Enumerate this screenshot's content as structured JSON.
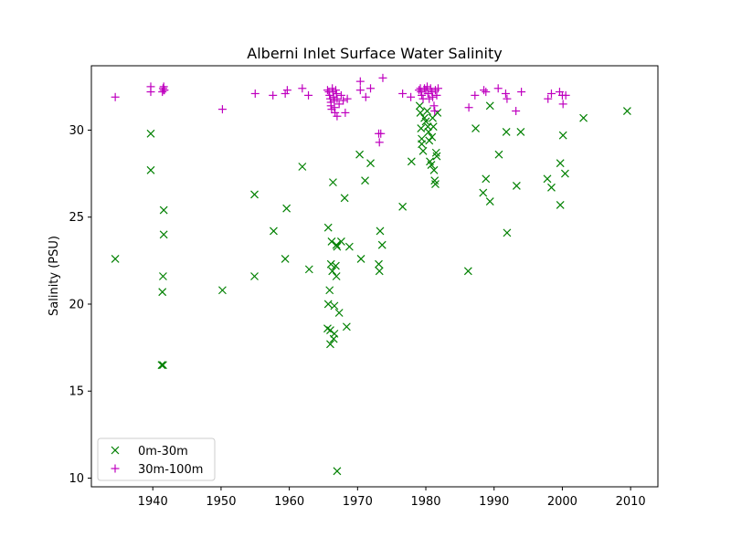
{
  "chart_data": {
    "type": "scatter",
    "title": "Alberni Inlet Surface Water Salinity",
    "xlabel": "",
    "ylabel": "Salinity (PSU)",
    "xlim": [
      1931,
      2014
    ],
    "ylim": [
      9.5,
      33.7
    ],
    "x_ticks": [
      1940,
      1950,
      1960,
      1970,
      1980,
      1990,
      2000,
      2010
    ],
    "y_ticks": [
      10,
      15,
      20,
      25,
      30
    ],
    "grid": false,
    "legend_position": "lower-left",
    "series": [
      {
        "name": "0m-30m",
        "marker": "x",
        "color": "#008000",
        "points": [
          [
            1934.5,
            22.6
          ],
          [
            1939.7,
            29.8
          ],
          [
            1939.7,
            27.7
          ],
          [
            1941.3,
            16.5
          ],
          [
            1941.5,
            16.5
          ],
          [
            1941.4,
            20.7
          ],
          [
            1941.5,
            21.6
          ],
          [
            1941.6,
            24.0
          ],
          [
            1941.6,
            25.4
          ],
          [
            1950.2,
            20.8
          ],
          [
            1954.9,
            26.3
          ],
          [
            1954.9,
            21.6
          ],
          [
            1957.7,
            24.2
          ],
          [
            1959.4,
            22.6
          ],
          [
            1959.6,
            25.5
          ],
          [
            1961.9,
            27.9
          ],
          [
            1962.9,
            22.0
          ],
          [
            1965.7,
            24.4
          ],
          [
            1965.9,
            20.8
          ],
          [
            1965.7,
            20.0
          ],
          [
            1965.6,
            18.6
          ],
          [
            1966.0,
            18.5
          ],
          [
            1966.0,
            17.7
          ],
          [
            1966.1,
            22.3
          ],
          [
            1966.3,
            21.9
          ],
          [
            1966.2,
            23.6
          ],
          [
            1966.4,
            27.0
          ],
          [
            1966.6,
            19.9
          ],
          [
            1966.6,
            18.3
          ],
          [
            1966.5,
            18.0
          ],
          [
            1966.8,
            22.2
          ],
          [
            1966.9,
            21.6
          ],
          [
            1966.9,
            23.4
          ],
          [
            1967.0,
            23.3
          ],
          [
            1967.0,
            10.4
          ],
          [
            1967.3,
            19.5
          ],
          [
            1967.6,
            23.6
          ],
          [
            1968.1,
            26.1
          ],
          [
            1968.4,
            18.7
          ],
          [
            1968.8,
            23.3
          ],
          [
            1970.3,
            28.6
          ],
          [
            1970.5,
            22.6
          ],
          [
            1971.1,
            27.1
          ],
          [
            1971.9,
            28.1
          ],
          [
            1973.1,
            22.3
          ],
          [
            1973.2,
            21.9
          ],
          [
            1973.3,
            24.2
          ],
          [
            1973.6,
            23.4
          ],
          [
            1976.6,
            25.6
          ],
          [
            1977.9,
            28.2
          ],
          [
            1979.1,
            31.4
          ],
          [
            1979.2,
            31.0
          ],
          [
            1979.3,
            30.1
          ],
          [
            1979.4,
            29.5
          ],
          [
            1979.4,
            29.2
          ],
          [
            1979.6,
            28.8
          ],
          [
            1979.8,
            30.7
          ],
          [
            1980.0,
            30.5
          ],
          [
            1980.2,
            31.1
          ],
          [
            1980.3,
            30.2
          ],
          [
            1980.4,
            29.9
          ],
          [
            1980.5,
            29.4
          ],
          [
            1980.6,
            28.2
          ],
          [
            1980.8,
            28.0
          ],
          [
            1980.9,
            29.6
          ],
          [
            1981.0,
            30.7
          ],
          [
            1981.1,
            30.2
          ],
          [
            1981.2,
            27.7
          ],
          [
            1981.3,
            27.1
          ],
          [
            1981.4,
            26.9
          ],
          [
            1981.5,
            28.7
          ],
          [
            1981.6,
            28.5
          ],
          [
            1981.7,
            31.0
          ],
          [
            1986.2,
            21.9
          ],
          [
            1987.3,
            30.1
          ],
          [
            1988.4,
            26.4
          ],
          [
            1988.8,
            27.2
          ],
          [
            1989.4,
            31.4
          ],
          [
            1989.4,
            25.9
          ],
          [
            1990.7,
            28.6
          ],
          [
            1991.8,
            29.9
          ],
          [
            1991.9,
            24.1
          ],
          [
            1993.3,
            26.8
          ],
          [
            1993.9,
            29.9
          ],
          [
            1997.8,
            27.2
          ],
          [
            1998.4,
            26.7
          ],
          [
            1999.7,
            28.1
          ],
          [
            1999.7,
            25.7
          ],
          [
            2000.1,
            29.7
          ],
          [
            2000.4,
            27.5
          ],
          [
            2003.1,
            30.7
          ],
          [
            2009.5,
            31.1
          ]
        ]
      },
      {
        "name": "30m-100m",
        "marker": "+",
        "color": "#bf00bf",
        "points": [
          [
            1934.5,
            31.9
          ],
          [
            1939.7,
            32.5
          ],
          [
            1939.7,
            32.2
          ],
          [
            1941.4,
            32.2
          ],
          [
            1941.5,
            32.4
          ],
          [
            1941.6,
            32.3
          ],
          [
            1941.7,
            32.3
          ],
          [
            1941.6,
            32.5
          ],
          [
            1950.2,
            31.2
          ],
          [
            1955.0,
            32.1
          ],
          [
            1957.6,
            32.0
          ],
          [
            1959.4,
            32.1
          ],
          [
            1959.7,
            32.3
          ],
          [
            1961.9,
            32.4
          ],
          [
            1962.8,
            32.0
          ],
          [
            1965.6,
            32.3
          ],
          [
            1965.8,
            32.2
          ],
          [
            1965.9,
            32.0
          ],
          [
            1966.0,
            31.8
          ],
          [
            1966.1,
            31.6
          ],
          [
            1966.1,
            31.4
          ],
          [
            1966.2,
            31.2
          ],
          [
            1966.3,
            32.4
          ],
          [
            1966.4,
            32.2
          ],
          [
            1966.5,
            31.9
          ],
          [
            1966.6,
            31.7
          ],
          [
            1966.6,
            31.3
          ],
          [
            1966.7,
            31.0
          ],
          [
            1966.8,
            32.3
          ],
          [
            1966.9,
            32.1
          ],
          [
            1967.0,
            31.8
          ],
          [
            1967.0,
            30.8
          ],
          [
            1967.3,
            31.5
          ],
          [
            1967.6,
            32.0
          ],
          [
            1967.9,
            31.7
          ],
          [
            1968.2,
            31.0
          ],
          [
            1968.5,
            31.8
          ],
          [
            1970.4,
            32.8
          ],
          [
            1970.4,
            32.3
          ],
          [
            1971.2,
            31.9
          ],
          [
            1971.9,
            32.4
          ],
          [
            1973.1,
            29.8
          ],
          [
            1973.2,
            29.3
          ],
          [
            1973.4,
            29.8
          ],
          [
            1973.7,
            33.0
          ],
          [
            1976.6,
            32.1
          ],
          [
            1977.8,
            31.9
          ],
          [
            1979.0,
            32.3
          ],
          [
            1979.2,
            32.4
          ],
          [
            1979.3,
            32.2
          ],
          [
            1979.4,
            32.0
          ],
          [
            1979.6,
            31.8
          ],
          [
            1979.8,
            32.4
          ],
          [
            1980.0,
            32.3
          ],
          [
            1980.2,
            32.5
          ],
          [
            1980.3,
            32.1
          ],
          [
            1980.5,
            31.8
          ],
          [
            1980.7,
            32.4
          ],
          [
            1980.9,
            32.2
          ],
          [
            1981.0,
            31.9
          ],
          [
            1981.2,
            31.4
          ],
          [
            1981.3,
            31.1
          ],
          [
            1981.4,
            32.3
          ],
          [
            1981.6,
            32.0
          ],
          [
            1981.8,
            32.4
          ],
          [
            1986.3,
            31.3
          ],
          [
            1987.2,
            32.0
          ],
          [
            1988.5,
            32.3
          ],
          [
            1988.8,
            32.2
          ],
          [
            1990.6,
            32.4
          ],
          [
            1991.7,
            32.1
          ],
          [
            1991.9,
            31.8
          ],
          [
            1993.2,
            31.1
          ],
          [
            1994.0,
            32.2
          ],
          [
            1997.9,
            31.8
          ],
          [
            1998.4,
            32.1
          ],
          [
            1999.6,
            32.2
          ],
          [
            2000.0,
            32.0
          ],
          [
            2000.1,
            31.5
          ],
          [
            2000.5,
            32.0
          ]
        ]
      }
    ]
  }
}
